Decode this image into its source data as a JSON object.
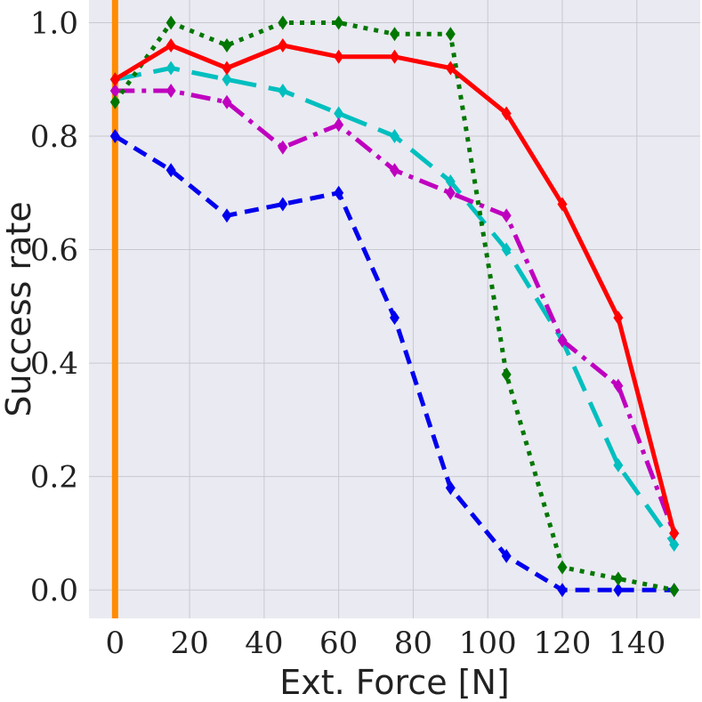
{
  "chart_data": {
    "type": "line",
    "xlabel": "Ext. Force [N]",
    "ylabel": "Success rate",
    "xlim": [
      -7,
      157
    ],
    "ylim": [
      -0.05,
      1.04
    ],
    "xticks": [
      "0",
      "20",
      "40",
      "60",
      "80",
      "100",
      "120",
      "140"
    ],
    "yticks": [
      "0.0",
      "0.2",
      "0.4",
      "0.6",
      "0.8",
      "1.0"
    ],
    "grid": true,
    "background": "#eaeaf2",
    "vertical_line": {
      "x": 0,
      "color": "#ff8c00"
    },
    "series": [
      {
        "color": "#0000ee",
        "line_style": "dashed",
        "marker": "diamond",
        "x": [
          0,
          15,
          30,
          45,
          60,
          75,
          90,
          105,
          120,
          135,
          150
        ],
        "values": [
          0.8,
          0.74,
          0.66,
          0.68,
          0.7,
          0.48,
          0.18,
          0.06,
          0.0,
          0.0,
          0.0
        ]
      },
      {
        "color": "#00bfbf",
        "line_style": "long-dashed",
        "marker": "diamond",
        "x": [
          0,
          15,
          30,
          45,
          60,
          75,
          90,
          105,
          120,
          135,
          150
        ],
        "values": [
          0.9,
          0.92,
          0.9,
          0.88,
          0.84,
          0.8,
          0.72,
          0.6,
          0.44,
          0.22,
          0.08
        ]
      },
      {
        "color": "#bf00bf",
        "line_style": "dash-dot",
        "marker": "diamond",
        "x": [
          0,
          15,
          30,
          45,
          60,
          75,
          90,
          105,
          120,
          135,
          150
        ],
        "values": [
          0.88,
          0.88,
          0.86,
          0.78,
          0.82,
          0.74,
          0.7,
          0.66,
          0.44,
          0.36,
          0.1
        ]
      },
      {
        "color": "#007700",
        "line_style": "dotted",
        "marker": "diamond",
        "x": [
          0,
          15,
          30,
          45,
          60,
          75,
          90,
          105,
          120,
          135,
          150
        ],
        "values": [
          0.86,
          1.0,
          0.96,
          1.0,
          1.0,
          0.98,
          0.98,
          0.38,
          0.04,
          0.02,
          0.0
        ]
      },
      {
        "color": "#ff0000",
        "line_style": "solid",
        "marker": "diamond",
        "x": [
          0,
          15,
          30,
          45,
          60,
          75,
          90,
          105,
          120,
          135,
          150
        ],
        "values": [
          0.9,
          0.96,
          0.92,
          0.96,
          0.94,
          0.94,
          0.92,
          0.84,
          0.68,
          0.48,
          0.1
        ]
      }
    ]
  }
}
